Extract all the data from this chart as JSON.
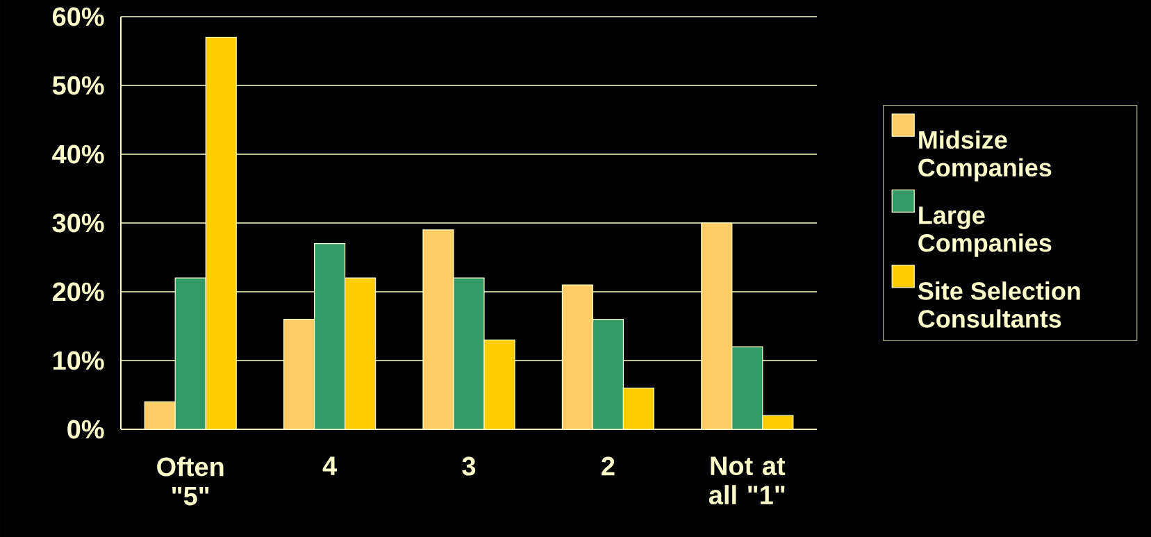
{
  "chart_data": {
    "type": "bar",
    "categories": [
      "Often \"5\"",
      "4",
      "3",
      "2",
      "Not at all \"1\""
    ],
    "series": [
      {
        "name": "Midsize Companies",
        "color": "#ffcc66",
        "values": [
          4,
          16,
          29,
          21,
          30
        ]
      },
      {
        "name": "Large Companies",
        "color": "#339966",
        "values": [
          22,
          27,
          22,
          16,
          12
        ]
      },
      {
        "name": "Site Selection Consultants",
        "color": "#ffcc00",
        "values": [
          57,
          22,
          13,
          6,
          2
        ]
      }
    ],
    "ylim": [
      0,
      60
    ],
    "yticks": [
      {
        "value": 0,
        "label": "0%"
      },
      {
        "value": 10,
        "label": "10%"
      },
      {
        "value": 20,
        "label": "20%"
      },
      {
        "value": 30,
        "label": "30%"
      },
      {
        "value": 40,
        "label": "40%"
      },
      {
        "value": 50,
        "label": "50%"
      },
      {
        "value": 60,
        "label": "60%"
      }
    ],
    "grid": true,
    "legend": "right"
  }
}
